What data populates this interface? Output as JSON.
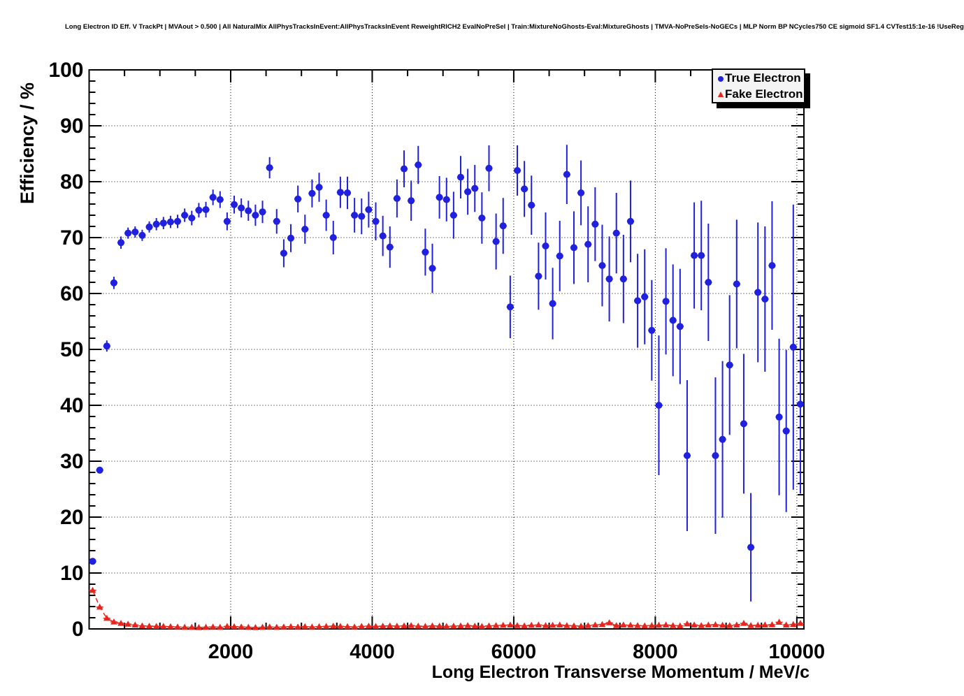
{
  "chart_data": {
    "type": "scatter",
    "title": "Long Electron ID Eff. V TrackPt | MVAout > 0.500 | All NaturalMix AllPhysTracksInEvent:AllPhysTracksInEvent ReweightRICH2 EvalNoPreSel | Train:MixtureNoGhosts-Eval:MixtureGhosts | TMVA-NoPreSels-NoGECs | MLP Norm BP NCycles750 CE sigmoid SF1.4 CVTest15:1e-16 !UseReg",
    "xlabel": "Long Electron Transverse Momentum / MeV/c",
    "ylabel": "Efficiency / %",
    "xlim": [
      0,
      10100
    ],
    "ylim": [
      0,
      100
    ],
    "x_tick_values": [
      2000,
      4000,
      6000,
      8000,
      10000
    ],
    "y_tick_values": [
      0,
      10,
      20,
      30,
      40,
      50,
      60,
      70,
      80,
      90,
      100
    ],
    "x_minor_tick_step": 500,
    "y_minor_tick_step": 2,
    "grid": "dotted",
    "x_bin_start": 50,
    "x_bin_step": 100,
    "n_bins": 101,
    "colors": {
      "true_electron": "#2020df",
      "fake_electron": "#e8251c",
      "axis": "#000000"
    },
    "legend": {
      "position": "top-right",
      "entries": [
        {
          "label": "True Electron",
          "marker": "circle",
          "color": "#2020df"
        },
        {
          "label": "Fake Electron",
          "marker": "triangle",
          "color": "#e8251c"
        }
      ]
    },
    "series": [
      {
        "name": "Fake Electron",
        "marker": "triangle",
        "line": "dashed",
        "color": "#e8251c",
        "xerr": 50,
        "y": [
          6.9,
          3.9,
          1.9,
          1.25,
          1.0,
          0.85,
          0.7,
          0.55,
          0.5,
          0.45,
          0.45,
          0.4,
          0.35,
          0.3,
          0.3,
          0.25,
          0.3,
          0.35,
          0.3,
          0.45,
          0.4,
          0.35,
          0.3,
          0.25,
          0.3,
          0.35,
          0.3,
          0.35,
          0.4,
          0.35,
          0.4,
          0.35,
          0.4,
          0.45,
          0.5,
          0.45,
          0.4,
          0.35,
          0.45,
          0.5,
          0.45,
          0.5,
          0.55,
          0.5,
          0.55,
          0.6,
          0.5,
          0.45,
          0.55,
          0.5,
          0.45,
          0.5,
          0.55,
          0.6,
          0.5,
          0.45,
          0.55,
          0.6,
          0.65,
          0.7,
          0.6,
          0.55,
          0.65,
          0.7,
          0.6,
          0.65,
          0.7,
          0.6,
          0.55,
          0.5,
          0.6,
          0.7,
          0.8,
          1.1,
          0.6,
          0.7,
          0.65,
          0.6,
          0.55,
          0.6,
          0.65,
          0.7,
          0.6,
          0.55,
          0.9,
          0.7,
          0.6,
          0.7,
          0.75,
          0.65,
          0.6,
          0.7,
          1.0,
          0.6,
          0.65,
          0.7,
          0.75,
          1.2,
          0.7,
          0.8,
          1.0
        ],
        "yerr_head": [
          0.35,
          0.3,
          0.25,
          0.2
        ],
        "yerr_default": 0.2
      },
      {
        "name": "True Electron",
        "marker": "circle",
        "line": "none",
        "color": "#2020df",
        "xerr": 50,
        "y": [
          12.1,
          28.4,
          50.6,
          61.9,
          69.1,
          70.8,
          71.0,
          70.4,
          71.9,
          72.4,
          72.6,
          72.8,
          72.9,
          74.0,
          73.5,
          74.9,
          75.0,
          77.2,
          76.8,
          72.9,
          75.9,
          75.3,
          74.8,
          74.0,
          74.6,
          82.5,
          72.9,
          67.2,
          69.9,
          76.9,
          71.5,
          77.9,
          79.0,
          74.0,
          70.0,
          78.1,
          78.0,
          74.0,
          73.8,
          75.0,
          72.9,
          70.3,
          68.3,
          77.0,
          82.3,
          76.6,
          83.0,
          67.4,
          64.5,
          77.2,
          76.8,
          74.0,
          80.8,
          78.2,
          78.8,
          73.5,
          82.4,
          69.3,
          72.1,
          57.6,
          82.0,
          78.7,
          75.8,
          63.1,
          68.5,
          58.2,
          66.7,
          81.3,
          68.2,
          78.0,
          68.8,
          72.4,
          65.0,
          62.6,
          70.8,
          62.6,
          72.9,
          58.7,
          59.4,
          53.4,
          40.0,
          58.6,
          55.2,
          54.1,
          31.0,
          66.8,
          66.8,
          62.0,
          31.0,
          33.9,
          47.2,
          61.7,
          36.7,
          14.6,
          60.2,
          59.0,
          65.0,
          37.9,
          35.4,
          50.4,
          40.2
        ],
        "yerr": [
          0.4,
          0.6,
          1.0,
          1.1,
          1.1,
          1.0,
          1.0,
          1.0,
          1.0,
          1.1,
          1.1,
          1.1,
          1.2,
          1.2,
          1.3,
          1.3,
          1.4,
          1.4,
          1.5,
          1.6,
          1.6,
          1.7,
          1.8,
          1.9,
          2.0,
          1.9,
          2.2,
          2.5,
          2.5,
          2.4,
          2.6,
          2.5,
          2.6,
          2.8,
          3.0,
          2.8,
          2.9,
          3.1,
          3.2,
          3.2,
          3.4,
          3.6,
          3.7,
          3.4,
          3.3,
          3.6,
          3.4,
          4.2,
          4.4,
          3.8,
          3.9,
          4.2,
          3.8,
          4.1,
          4.2,
          4.6,
          4.1,
          5.0,
          5.0,
          5.6,
          4.5,
          5.0,
          5.3,
          6.0,
          6.0,
          6.4,
          6.3,
          5.3,
          6.5,
          5.8,
          6.8,
          6.6,
          7.3,
          7.6,
          7.2,
          7.9,
          7.3,
          8.4,
          8.5,
          9.0,
          12.5,
          9.5,
          10.0,
          10.3,
          13.5,
          9.5,
          9.8,
          10.5,
          14.0,
          14.0,
          12.5,
          11.5,
          12.5,
          9.7,
          12.5,
          13.0,
          11.5,
          14.0,
          14.5,
          25.5,
          16.0
        ]
      }
    ]
  }
}
